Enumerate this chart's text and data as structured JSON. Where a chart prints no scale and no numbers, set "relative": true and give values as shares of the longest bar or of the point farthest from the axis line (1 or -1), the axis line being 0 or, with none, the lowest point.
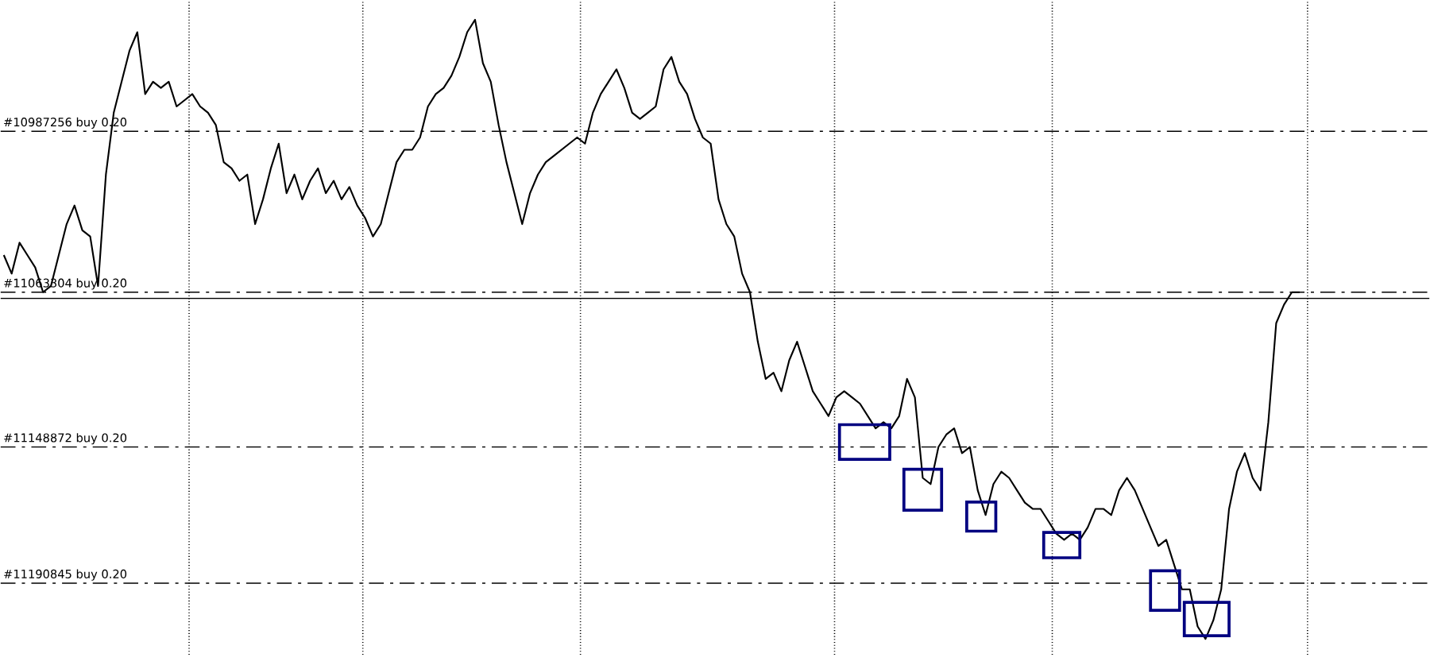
{
  "chart_data": {
    "type": "line",
    "relative": true,
    "grid": "x",
    "categories": [
      null,
      null,
      null,
      null,
      null,
      null,
      null,
      null,
      null,
      null,
      null,
      null,
      null,
      null,
      null,
      null,
      null,
      null,
      null,
      null,
      null,
      null,
      null,
      null,
      null,
      null,
      null,
      null,
      null,
      null,
      null,
      null,
      null,
      null,
      null,
      null,
      null,
      null,
      null,
      null,
      null,
      null,
      null,
      null,
      null,
      null,
      null,
      null,
      null,
      null,
      null,
      null,
      null,
      null,
      null,
      null,
      null,
      null,
      null,
      null,
      null,
      null,
      null,
      null,
      null,
      null,
      null,
      null,
      null,
      null,
      null,
      null,
      null,
      null,
      null,
      null,
      null,
      null,
      null,
      null,
      null,
      null,
      null,
      null,
      null,
      null,
      null,
      null,
      null,
      null,
      null,
      null,
      null,
      null,
      null,
      null,
      null,
      null,
      null,
      null,
      null,
      null,
      null,
      null,
      null,
      null,
      null,
      null,
      null,
      null,
      null,
      null,
      null,
      null,
      null,
      null,
      null,
      null,
      null,
      null,
      null,
      null,
      null,
      null,
      null,
      null,
      null,
      null,
      null,
      null,
      null,
      null,
      null,
      null,
      null,
      null,
      null,
      null,
      null,
      null,
      null,
      null,
      null,
      null,
      null,
      null,
      null,
      null,
      null,
      null,
      null,
      null,
      null,
      null,
      null,
      null,
      null,
      null,
      null,
      null,
      null,
      null,
      null,
      null,
      null,
      null
    ],
    "series": [
      {
        "color": "#000000",
        "values": [
          0.62,
          0.59,
          0.64,
          0.62,
          0.6,
          0.56,
          0.57,
          0.62,
          0.67,
          0.7,
          0.66,
          0.65,
          0.57,
          0.75,
          0.85,
          0.9,
          0.95,
          0.98,
          0.88,
          0.9,
          0.89,
          0.9,
          0.86,
          0.87,
          0.88,
          0.86,
          0.85,
          0.83,
          0.77,
          0.76,
          0.74,
          0.75,
          0.67,
          0.71,
          0.76,
          0.8,
          0.72,
          0.75,
          0.71,
          0.74,
          0.76,
          0.72,
          0.74,
          0.71,
          0.73,
          0.7,
          0.68,
          0.65,
          0.67,
          0.72,
          0.77,
          0.79,
          0.79,
          0.81,
          0.86,
          0.88,
          0.89,
          0.91,
          0.94,
          0.98,
          1,
          0.93,
          0.9,
          0.83,
          0.77,
          0.72,
          0.67,
          0.72,
          0.75,
          0.77,
          0.78,
          0.79,
          0.8,
          0.81,
          0.8,
          0.85,
          0.88,
          0.9,
          0.92,
          0.89,
          0.85,
          0.84,
          0.85,
          0.86,
          0.92,
          0.94,
          0.9,
          0.88,
          0.84,
          0.81,
          0.8,
          0.71,
          0.67,
          0.65,
          0.59,
          0.56,
          0.48,
          0.42,
          0.43,
          0.4,
          0.45,
          0.48,
          0.44,
          0.4,
          0.38,
          0.36,
          0.39,
          0.4,
          0.39,
          0.38,
          0.36,
          0.34,
          0.35,
          0.34,
          0.36,
          0.42,
          0.39,
          0.26,
          0.25,
          0.31,
          0.33,
          0.34,
          0.3,
          0.31,
          0.24,
          0.2,
          0.25,
          0.27,
          0.26,
          0.24,
          0.22,
          0.21,
          0.21,
          0.19,
          0.17,
          0.16,
          0.17,
          0.16,
          0.18,
          0.21,
          0.21,
          0.2,
          0.24,
          0.26,
          0.24,
          0.21,
          0.18,
          0.15,
          0.16,
          0.12,
          0.08,
          0.08,
          0.02,
          0,
          0.03,
          0.08,
          0.21,
          0.27,
          0.3,
          0.26,
          0.24,
          0.35,
          0.51,
          0.54,
          0.56,
          0.56
        ]
      }
    ],
    "ref_lines": [
      {
        "axis": "y",
        "value": 0.82,
        "label": "#10987256 buy 0.20",
        "color": "#000000",
        "line_style": "dashed"
      },
      {
        "axis": "y",
        "value": 0.56,
        "label": "#11063304 buy 0.20",
        "color": "#000000",
        "line_style": "dashed"
      },
      {
        "axis": "y",
        "value": 0.55,
        "color": "#000000",
        "line_style": "solid"
      },
      {
        "axis": "y",
        "value": 0.31,
        "label": "#11148872 buy 0.20",
        "color": "#000000",
        "line_style": "dashed"
      },
      {
        "axis": "y",
        "value": 0.09,
        "label": "#11190845 buy 0.20",
        "color": "#000000",
        "line_style": "dashed"
      }
    ]
  }
}
